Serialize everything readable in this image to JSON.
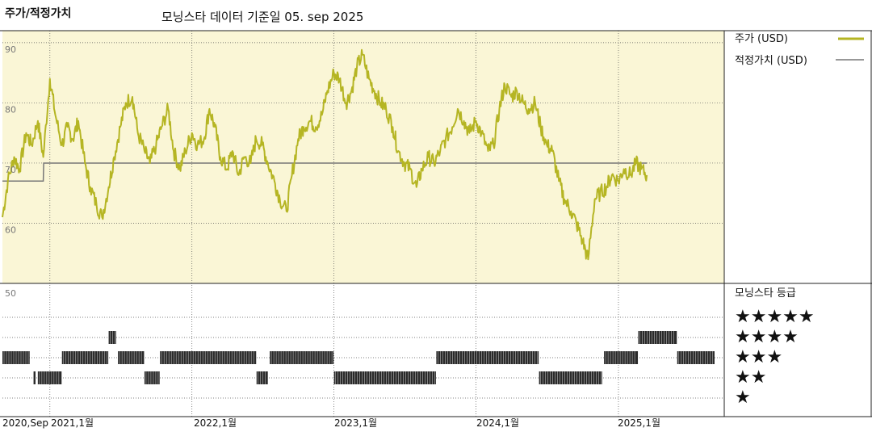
{
  "header": {
    "title": "주가/적정가치",
    "subtitle": "모닝스타 데이터 기준일 05. sep 2025"
  },
  "legend": {
    "price_label": "주가 (USD)",
    "fair_label": "적정가치 (USD)",
    "rating_title": "모닝스타 등급",
    "star_rows": [
      "★★★★★",
      "★★★★",
      "★★★",
      "★★",
      "★"
    ]
  },
  "colors": {
    "price": "#b5b523",
    "fair": "#777777",
    "plot_bg": "#faf6d6",
    "rating_bar": "#2a2a2a"
  },
  "chart_data": [
    {
      "type": "line",
      "title": "주가/적정가치",
      "ylim": [
        50,
        92
      ],
      "yticks": [
        60,
        70,
        80,
        90
      ],
      "grid": true,
      "legend_position": "right",
      "x_range": [
        "2020-09",
        "2025-09"
      ],
      "series": [
        {
          "name": "주가 (USD)",
          "points": [
            [
              "2020-09-01",
              61
            ],
            [
              "2020-09-15",
              67
            ],
            [
              "2020-10-01",
              71
            ],
            [
              "2020-10-15",
              69
            ],
            [
              "2020-11-01",
              75
            ],
            [
              "2020-11-15",
              73
            ],
            [
              "2020-12-01",
              77
            ],
            [
              "2020-12-15",
              71
            ],
            [
              "2021-01-01",
              84
            ],
            [
              "2021-01-15",
              78
            ],
            [
              "2021-02-01",
              73
            ],
            [
              "2021-02-15",
              76
            ],
            [
              "2021-03-01",
              74
            ],
            [
              "2021-03-15",
              77
            ],
            [
              "2021-04-01",
              70
            ],
            [
              "2021-04-15",
              66
            ],
            [
              "2021-05-01",
              63
            ],
            [
              "2021-05-15",
              61
            ],
            [
              "2021-06-01",
              66
            ],
            [
              "2021-06-15",
              71
            ],
            [
              "2021-07-01",
              76
            ],
            [
              "2021-07-15",
              80
            ],
            [
              "2021-08-01",
              81
            ],
            [
              "2021-08-15",
              75
            ],
            [
              "2021-09-01",
              72
            ],
            [
              "2021-09-15",
              70
            ],
            [
              "2021-10-01",
              73
            ],
            [
              "2021-10-15",
              76
            ],
            [
              "2021-11-01",
              79
            ],
            [
              "2021-11-15",
              72
            ],
            [
              "2021-12-01",
              69
            ],
            [
              "2021-12-15",
              72
            ],
            [
              "2022-01-01",
              75
            ],
            [
              "2022-01-15",
              73
            ],
            [
              "2022-02-01",
              74
            ],
            [
              "2022-02-15",
              79
            ],
            [
              "2022-03-01",
              76
            ],
            [
              "2022-03-15",
              71
            ],
            [
              "2022-04-01",
              69
            ],
            [
              "2022-04-15",
              72
            ],
            [
              "2022-05-01",
              68
            ],
            [
              "2022-05-15",
              71
            ],
            [
              "2022-06-01",
              70
            ],
            [
              "2022-06-15",
              74
            ],
            [
              "2022-07-01",
              73
            ],
            [
              "2022-07-15",
              70
            ],
            [
              "2022-08-01",
              67
            ],
            [
              "2022-08-15",
              64
            ],
            [
              "2022-09-01",
              62
            ],
            [
              "2022-09-15",
              68
            ],
            [
              "2022-10-01",
              74
            ],
            [
              "2022-10-15",
              76
            ],
            [
              "2022-11-01",
              77
            ],
            [
              "2022-11-15",
              76
            ],
            [
              "2022-12-01",
              78
            ],
            [
              "2022-12-15",
              82
            ],
            [
              "2023-01-01",
              85
            ],
            [
              "2023-01-15",
              84
            ],
            [
              "2023-02-01",
              80
            ],
            [
              "2023-02-15",
              82
            ],
            [
              "2023-03-01",
              86
            ],
            [
              "2023-03-15",
              88
            ],
            [
              "2023-04-01",
              84
            ],
            [
              "2023-04-15",
              82
            ],
            [
              "2023-05-01",
              80
            ],
            [
              "2023-05-15",
              79
            ],
            [
              "2023-06-01",
              76
            ],
            [
              "2023-06-15",
              72
            ],
            [
              "2023-07-01",
              70
            ],
            [
              "2023-07-15",
              69
            ],
            [
              "2023-08-01",
              66
            ],
            [
              "2023-08-15",
              69
            ],
            [
              "2023-09-01",
              71
            ],
            [
              "2023-09-15",
              70
            ],
            [
              "2023-10-01",
              72
            ],
            [
              "2023-10-15",
              74
            ],
            [
              "2023-11-01",
              76
            ],
            [
              "2023-11-15",
              79
            ],
            [
              "2023-12-01",
              77
            ],
            [
              "2023-12-15",
              75
            ],
            [
              "2024-01-01",
              77
            ],
            [
              "2024-01-15",
              75
            ],
            [
              "2024-02-01",
              72
            ],
            [
              "2024-02-15",
              73
            ],
            [
              "2024-03-01",
              79
            ],
            [
              "2024-03-15",
              83
            ],
            [
              "2024-04-01",
              81
            ],
            [
              "2024-04-15",
              82
            ],
            [
              "2024-05-01",
              80
            ],
            [
              "2024-05-15",
              79
            ],
            [
              "2024-06-01",
              80
            ],
            [
              "2024-06-15",
              76
            ],
            [
              "2024-07-01",
              73
            ],
            [
              "2024-07-15",
              72
            ],
            [
              "2024-08-01",
              67
            ],
            [
              "2024-08-15",
              64
            ],
            [
              "2024-09-01",
              62
            ],
            [
              "2024-09-15",
              60
            ],
            [
              "2024-10-01",
              57
            ],
            [
              "2024-10-15",
              54
            ],
            [
              "2024-11-01",
              64
            ],
            [
              "2024-11-15",
              65
            ],
            [
              "2024-12-01",
              66
            ],
            [
              "2024-12-15",
              68
            ],
            [
              "2025-01-01",
              67
            ],
            [
              "2025-01-15",
              69
            ],
            [
              "2025-02-01",
              68
            ],
            [
              "2025-02-15",
              70
            ],
            [
              "2025-03-01",
              69
            ],
            [
              "2025-03-15",
              68
            ]
          ]
        },
        {
          "name": "적정가치 (USD)",
          "points": [
            [
              "2020-09-01",
              67
            ],
            [
              "2020-12-15",
              67
            ],
            [
              "2020-12-16",
              70
            ],
            [
              "2025-03-15",
              70
            ]
          ]
        }
      ],
      "xticks": [
        "2020,Sep",
        "2021,1월",
        "2022,1월",
        "2023,1월",
        "2024,1월",
        "2025,1월"
      ]
    },
    {
      "type": "bar",
      "title": "모닝스타 등급",
      "ytick_label": "50",
      "segments": [
        {
          "start": "2020-09-01",
          "end": "2020-11-10",
          "stars": 3
        },
        {
          "start": "2020-11-20",
          "end": "2020-11-25",
          "stars": 2
        },
        {
          "start": "2020-12-01",
          "end": "2021-01-31",
          "stars": 2
        },
        {
          "start": "2021-02-01",
          "end": "2021-05-31",
          "stars": 3
        },
        {
          "start": "2021-06-01",
          "end": "2021-06-20",
          "stars": 4
        },
        {
          "start": "2021-06-25",
          "end": "2021-08-31",
          "stars": 3
        },
        {
          "start": "2021-09-01",
          "end": "2021-10-10",
          "stars": 2
        },
        {
          "start": "2021-10-11",
          "end": "2022-06-15",
          "stars": 3
        },
        {
          "start": "2022-06-16",
          "end": "2022-07-15",
          "stars": 2
        },
        {
          "start": "2022-07-20",
          "end": "2022-12-31",
          "stars": 3
        },
        {
          "start": "2023-01-01",
          "end": "2023-09-20",
          "stars": 2
        },
        {
          "start": "2023-09-21",
          "end": "2024-06-10",
          "stars": 3
        },
        {
          "start": "2024-06-11",
          "end": "2024-11-20",
          "stars": 2
        },
        {
          "start": "2024-11-25",
          "end": "2025-02-20",
          "stars": 3
        },
        {
          "start": "2025-02-21",
          "end": "2025-05-31",
          "stars": 4
        },
        {
          "start": "2025-06-01",
          "end": "2025-09-05",
          "stars": 3
        }
      ]
    }
  ]
}
